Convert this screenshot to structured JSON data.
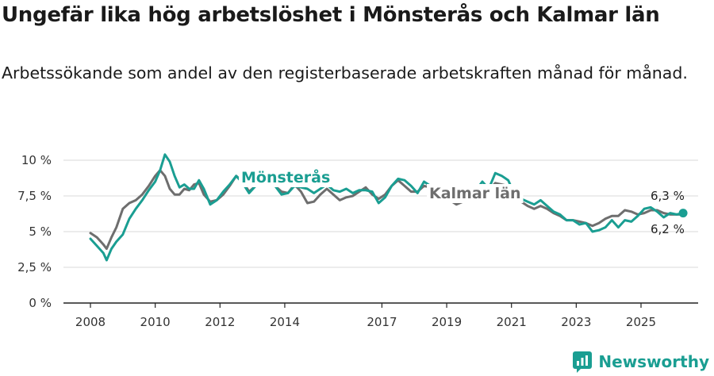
{
  "title": "Ungefär lika hög arbetslöshet i Mönsterås och Kalmar län",
  "subtitle": "Arbetssökande som andel av den registerbaserade arbetskraften månad för månad.",
  "brand": "Newsworthy",
  "colors": {
    "monsteras": "#1a9e92",
    "kalmar": "#6e6e6e",
    "grid": "#d9d9d9",
    "axis": "#222222"
  },
  "chart_data": {
    "type": "line",
    "title": "Ungefär lika hög arbetslöshet i Mönsterås och Kalmar län",
    "xlabel": "",
    "ylabel": "",
    "xlim": [
      2008.0,
      2026.5
    ],
    "ylim": [
      0,
      11
    ],
    "y_ticks": [
      {
        "value": 0,
        "label": "0 %"
      },
      {
        "value": 2.5,
        "label": "2,5 %"
      },
      {
        "value": 5,
        "label": "5 %"
      },
      {
        "value": 7.5,
        "label": "7,5 %"
      },
      {
        "value": 10,
        "label": "10 %"
      }
    ],
    "x_ticks": [
      {
        "value": 2008,
        "label": "2008"
      },
      {
        "value": 2010,
        "label": "2010"
      },
      {
        "value": 2012,
        "label": "2012"
      },
      {
        "value": 2014,
        "label": "2014"
      },
      {
        "value": 2017,
        "label": "2017"
      },
      {
        "value": 2019,
        "label": "2019"
      },
      {
        "value": 2021,
        "label": "2021"
      },
      {
        "value": 2023,
        "label": "2023"
      },
      {
        "value": 2025,
        "label": "2025"
      }
    ],
    "series": [
      {
        "name": "Mönsterås",
        "label_text": "Mönsterås",
        "end_label": "6,3 %",
        "x": [
          2008.0,
          2008.2,
          2008.4,
          2008.5,
          2008.65,
          2008.8,
          2009.0,
          2009.2,
          2009.4,
          2009.6,
          2009.8,
          2010.0,
          2010.15,
          2010.3,
          2010.45,
          2010.6,
          2010.75,
          2010.9,
          2011.05,
          2011.2,
          2011.35,
          2011.5,
          2011.7,
          2011.9,
          2012.1,
          2012.3,
          2012.5,
          2012.7,
          2012.9,
          2013.1,
          2013.3,
          2013.5,
          2013.7,
          2013.9,
          2014.1,
          2014.3,
          2014.5,
          2014.7,
          2014.9,
          2015.1,
          2015.3,
          2015.5,
          2015.7,
          2015.9,
          2016.1,
          2016.3,
          2016.5,
          2016.7,
          2016.9,
          2017.1,
          2017.3,
          2017.5,
          2017.7,
          2017.9,
          2018.1,
          2018.3,
          2018.5,
          2018.7,
          2018.9,
          2019.1,
          2019.3,
          2019.5,
          2019.7,
          2019.9,
          2020.1,
          2020.3,
          2020.5,
          2020.7,
          2020.9,
          2021.1,
          2021.3,
          2021.5,
          2021.7,
          2021.9,
          2022.1,
          2022.3,
          2022.5,
          2022.7,
          2022.9,
          2023.1,
          2023.3,
          2023.5,
          2023.7,
          2023.9,
          2024.1,
          2024.3,
          2024.5,
          2024.7,
          2024.9,
          2025.1,
          2025.3,
          2025.5,
          2025.7,
          2025.9,
          2026.1,
          2026.3
        ],
        "values": [
          4.5,
          4.0,
          3.5,
          3.0,
          3.8,
          4.3,
          4.8,
          5.9,
          6.6,
          7.2,
          7.9,
          8.5,
          9.3,
          10.4,
          9.9,
          8.9,
          8.1,
          8.3,
          8.0,
          8.0,
          8.6,
          8.0,
          6.9,
          7.2,
          7.8,
          8.3,
          8.9,
          8.4,
          7.7,
          8.2,
          8.5,
          8.4,
          8.2,
          7.6,
          7.7,
          8.2,
          8.1,
          8.0,
          7.7,
          8.0,
          8.3,
          7.9,
          7.8,
          8.0,
          7.7,
          7.9,
          7.9,
          7.8,
          7.0,
          7.4,
          8.2,
          8.7,
          8.6,
          8.2,
          7.7,
          8.5,
          8.2,
          8.0,
          8.2,
          7.6,
          7.1,
          7.3,
          7.6,
          7.9,
          8.5,
          8.0,
          9.1,
          8.9,
          8.6,
          7.6,
          7.3,
          7.1,
          6.9,
          7.2,
          6.8,
          6.4,
          6.2,
          5.8,
          5.8,
          5.5,
          5.6,
          5.0,
          5.1,
          5.3,
          5.8,
          5.3,
          5.8,
          5.7,
          6.1,
          6.6,
          6.7,
          6.4,
          6.0,
          6.3,
          6.2,
          6.3
        ]
      },
      {
        "name": "Kalmar län",
        "label_text": "Kalmar län",
        "end_label": "6,2 %",
        "x": [
          2008.0,
          2008.2,
          2008.4,
          2008.5,
          2008.65,
          2008.8,
          2009.0,
          2009.2,
          2009.4,
          2009.6,
          2009.8,
          2010.0,
          2010.15,
          2010.3,
          2010.45,
          2010.6,
          2010.75,
          2010.9,
          2011.05,
          2011.2,
          2011.35,
          2011.5,
          2011.7,
          2011.9,
          2012.1,
          2012.3,
          2012.5,
          2012.7,
          2012.9,
          2013.1,
          2013.3,
          2013.5,
          2013.7,
          2013.9,
          2014.1,
          2014.3,
          2014.5,
          2014.7,
          2014.9,
          2015.1,
          2015.3,
          2015.5,
          2015.7,
          2015.9,
          2016.1,
          2016.3,
          2016.5,
          2016.7,
          2016.9,
          2017.1,
          2017.3,
          2017.5,
          2017.7,
          2017.9,
          2018.1,
          2018.3,
          2018.5,
          2018.7,
          2018.9,
          2019.1,
          2019.3,
          2019.5,
          2019.7,
          2019.9,
          2020.1,
          2020.3,
          2020.5,
          2020.7,
          2020.9,
          2021.1,
          2021.3,
          2021.5,
          2021.7,
          2021.9,
          2022.1,
          2022.3,
          2022.5,
          2022.7,
          2022.9,
          2023.1,
          2023.3,
          2023.5,
          2023.7,
          2023.9,
          2024.1,
          2024.3,
          2024.5,
          2024.7,
          2024.9,
          2025.1,
          2025.3,
          2025.5,
          2025.7,
          2025.9,
          2026.1,
          2026.3
        ],
        "values": [
          4.9,
          4.6,
          4.1,
          3.8,
          4.6,
          5.3,
          6.6,
          7.0,
          7.2,
          7.6,
          8.2,
          8.9,
          9.3,
          8.9,
          8.0,
          7.6,
          7.6,
          8.0,
          7.9,
          8.3,
          8.4,
          7.6,
          7.1,
          7.2,
          7.6,
          8.2,
          8.9,
          8.5,
          7.8,
          8.2,
          8.4,
          8.3,
          8.2,
          7.8,
          7.7,
          8.3,
          7.8,
          7.0,
          7.1,
          7.6,
          8.0,
          7.6,
          7.2,
          7.4,
          7.5,
          7.8,
          8.1,
          7.6,
          7.3,
          7.6,
          8.2,
          8.6,
          8.2,
          7.8,
          7.8,
          8.2,
          8.1,
          7.7,
          7.8,
          7.2,
          6.9,
          7.1,
          7.4,
          7.9,
          8.2,
          7.9,
          8.4,
          8.3,
          8.2,
          7.5,
          7.1,
          6.8,
          6.6,
          6.8,
          6.6,
          6.3,
          6.1,
          5.8,
          5.8,
          5.7,
          5.6,
          5.4,
          5.6,
          5.9,
          6.1,
          6.1,
          6.5,
          6.4,
          6.2,
          6.3,
          6.5,
          6.5,
          6.3,
          6.2,
          6.2,
          6.2
        ]
      }
    ]
  }
}
